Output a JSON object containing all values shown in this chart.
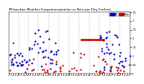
{
  "title": "Milwaukee Weather Evapotranspiration vs Rain per Day (Inches)",
  "title_fontsize": 2.8,
  "bg_color": "#ffffff",
  "plot_bg": "#ffffff",
  "legend_et_color": "#0000cc",
  "legend_rain_color": "#cc0000",
  "legend_et_label": "ET",
  "legend_rain_label": "Rain",
  "et_color": "#0000cc",
  "rain_color": "#cc0000",
  "grid_color": "#888888",
  "ylim": [
    0,
    0.35
  ],
  "xlim": [
    1,
    365
  ],
  "month_separators": [
    31,
    59,
    90,
    120,
    151,
    181,
    212,
    243,
    273,
    304,
    334
  ],
  "red_line_x1": 218,
  "red_line_x2": 285,
  "red_line_y": 0.195,
  "y_ticks": [
    0.0,
    0.05,
    0.1,
    0.15,
    0.2,
    0.25,
    0.3,
    0.35
  ],
  "y_tick_labels": [
    "0",
    ".05",
    ".1",
    ".15",
    ".2",
    ".25",
    ".3",
    ".35"
  ]
}
